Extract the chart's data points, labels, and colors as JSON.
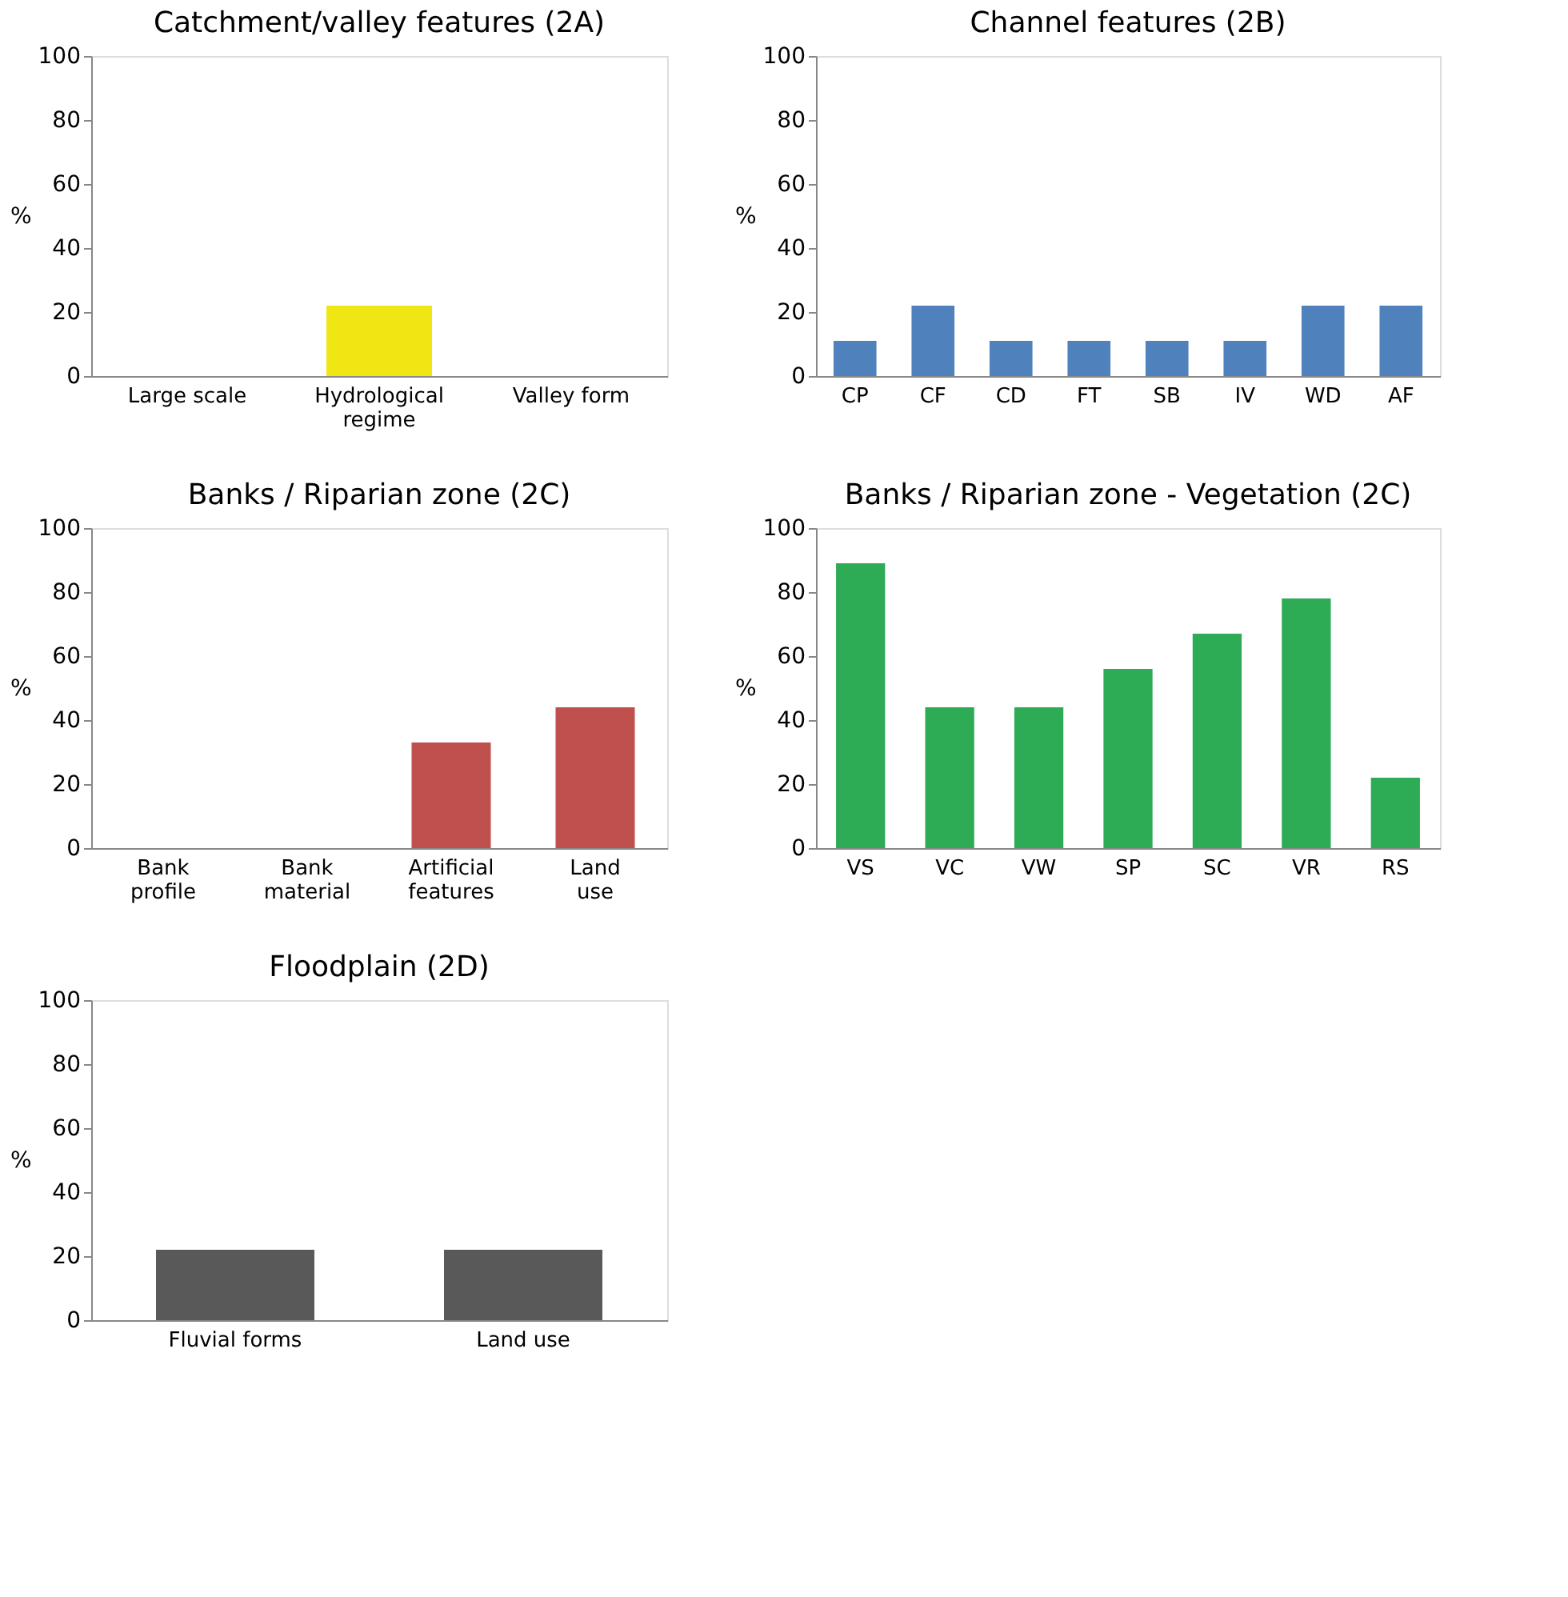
{
  "chart_data": [
    {
      "type": "bar",
      "title": "Catchment/valley features (2A)",
      "ylabel": "%",
      "categories": [
        "Large scale",
        "Hydrological\nregime",
        "Valley form"
      ],
      "values": [
        0,
        22,
        0
      ],
      "color": "#f0e614",
      "ylim": [
        0,
        100
      ],
      "yticks": [
        0,
        20,
        40,
        60,
        80,
        100
      ],
      "grid": false,
      "legend": false
    },
    {
      "type": "bar",
      "title": "Channel features (2B)",
      "ylabel": "%",
      "categories": [
        "CP",
        "CF",
        "CD",
        "FT",
        "SB",
        "IV",
        "WD",
        "AF"
      ],
      "values": [
        11,
        22,
        11,
        11,
        11,
        11,
        22,
        22
      ],
      "color": "#4f81bd",
      "ylim": [
        0,
        100
      ],
      "yticks": [
        0,
        20,
        40,
        60,
        80,
        100
      ],
      "grid": false,
      "legend": false
    },
    {
      "type": "bar",
      "title": "Banks / Riparian zone (2C)",
      "ylabel": "%",
      "categories": [
        "Bank\nprofile",
        "Bank\nmaterial",
        "Artificial\nfeatures",
        "Land\nuse"
      ],
      "values": [
        0,
        0,
        33,
        44
      ],
      "color": "#c0504d",
      "ylim": [
        0,
        100
      ],
      "yticks": [
        0,
        20,
        40,
        60,
        80,
        100
      ],
      "grid": false,
      "legend": false
    },
    {
      "type": "bar",
      "title": "Banks / Riparian zone - Vegetation (2C)",
      "ylabel": "%",
      "categories": [
        "VS",
        "VC",
        "VW",
        "SP",
        "SC",
        "VR",
        "RS"
      ],
      "values": [
        89,
        44,
        44,
        56,
        67,
        78,
        22
      ],
      "color": "#2eab55",
      "ylim": [
        0,
        100
      ],
      "yticks": [
        0,
        20,
        40,
        60,
        80,
        100
      ],
      "grid": false,
      "legend": false
    },
    {
      "type": "bar",
      "title": "Floodplain (2D)",
      "ylabel": "%",
      "categories": [
        "Fluvial forms",
        "Land use"
      ],
      "values": [
        22,
        22
      ],
      "color": "#595959",
      "ylim": [
        0,
        100
      ],
      "yticks": [
        0,
        20,
        40,
        60,
        80,
        100
      ],
      "grid": false,
      "legend": false
    }
  ]
}
